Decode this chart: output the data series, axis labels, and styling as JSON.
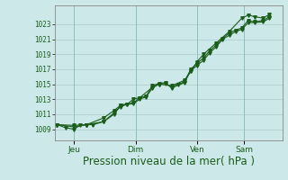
{
  "bg_color": "#cce8e8",
  "grid_color": "#aacccc",
  "line_color": "#1a5c1a",
  "xlabel": "Pression niveau de la mer( hPa )",
  "xlabel_fontsize": 8.5,
  "yticks": [
    1009,
    1011,
    1013,
    1015,
    1017,
    1019,
    1021,
    1023
  ],
  "ylim": [
    1007.5,
    1025.5
  ],
  "xlim": [
    -0.01,
    1.06
  ],
  "xtick_labels": [
    "Jeu",
    "Dim",
    "Ven",
    "Sam"
  ],
  "xtick_positions": [
    0.08,
    0.37,
    0.66,
    0.88
  ],
  "series1": [
    [
      0.0,
      1009.6
    ],
    [
      0.04,
      1009.2
    ],
    [
      0.08,
      1009.0
    ],
    [
      0.11,
      1009.5
    ],
    [
      0.14,
      1009.6
    ],
    [
      0.17,
      1009.6
    ],
    [
      0.22,
      1010.0
    ],
    [
      0.27,
      1011.0
    ],
    [
      0.3,
      1012.2
    ],
    [
      0.33,
      1012.3
    ],
    [
      0.36,
      1012.4
    ],
    [
      0.39,
      1013.0
    ],
    [
      0.42,
      1013.3
    ],
    [
      0.45,
      1014.5
    ],
    [
      0.48,
      1015.0
    ],
    [
      0.51,
      1015.1
    ],
    [
      0.54,
      1014.6
    ],
    [
      0.57,
      1015.0
    ],
    [
      0.6,
      1015.3
    ],
    [
      0.63,
      1017.0
    ],
    [
      0.66,
      1017.8
    ],
    [
      0.69,
      1018.5
    ],
    [
      0.72,
      1019.5
    ],
    [
      0.75,
      1020.2
    ],
    [
      0.78,
      1021.1
    ],
    [
      0.81,
      1021.8
    ],
    [
      0.84,
      1022.2
    ],
    [
      0.87,
      1022.5
    ],
    [
      0.9,
      1023.5
    ],
    [
      0.93,
      1023.3
    ],
    [
      0.97,
      1023.5
    ],
    [
      1.0,
      1024.0
    ]
  ],
  "series2": [
    [
      0.0,
      1009.6
    ],
    [
      0.08,
      1009.5
    ],
    [
      0.14,
      1009.6
    ],
    [
      0.22,
      1010.5
    ],
    [
      0.27,
      1011.5
    ],
    [
      0.3,
      1012.2
    ],
    [
      0.36,
      1012.5
    ],
    [
      0.39,
      1013.2
    ],
    [
      0.45,
      1014.6
    ],
    [
      0.48,
      1015.0
    ],
    [
      0.54,
      1014.8
    ],
    [
      0.6,
      1015.5
    ],
    [
      0.63,
      1016.7
    ],
    [
      0.66,
      1018.0
    ],
    [
      0.69,
      1019.0
    ],
    [
      0.75,
      1020.5
    ],
    [
      0.81,
      1022.0
    ],
    [
      0.87,
      1023.8
    ],
    [
      0.9,
      1024.2
    ],
    [
      0.93,
      1024.0
    ],
    [
      0.97,
      1023.8
    ],
    [
      1.0,
      1024.3
    ]
  ],
  "series3": [
    [
      0.0,
      1009.6
    ],
    [
      0.08,
      1009.3
    ],
    [
      0.14,
      1009.6
    ],
    [
      0.22,
      1010.0
    ],
    [
      0.27,
      1011.2
    ],
    [
      0.3,
      1012.0
    ],
    [
      0.33,
      1012.3
    ],
    [
      0.36,
      1013.0
    ],
    [
      0.39,
      1013.2
    ],
    [
      0.42,
      1013.4
    ],
    [
      0.45,
      1014.8
    ],
    [
      0.48,
      1015.1
    ],
    [
      0.51,
      1015.2
    ],
    [
      0.54,
      1014.5
    ],
    [
      0.6,
      1015.2
    ],
    [
      0.63,
      1016.8
    ],
    [
      0.66,
      1017.5
    ],
    [
      0.69,
      1018.2
    ],
    [
      0.72,
      1019.2
    ],
    [
      0.75,
      1020.0
    ],
    [
      0.78,
      1021.0
    ],
    [
      0.81,
      1021.5
    ],
    [
      0.84,
      1022.0
    ],
    [
      0.87,
      1022.3
    ],
    [
      0.9,
      1023.2
    ],
    [
      0.93,
      1023.2
    ],
    [
      0.97,
      1023.3
    ],
    [
      1.0,
      1023.8
    ]
  ]
}
